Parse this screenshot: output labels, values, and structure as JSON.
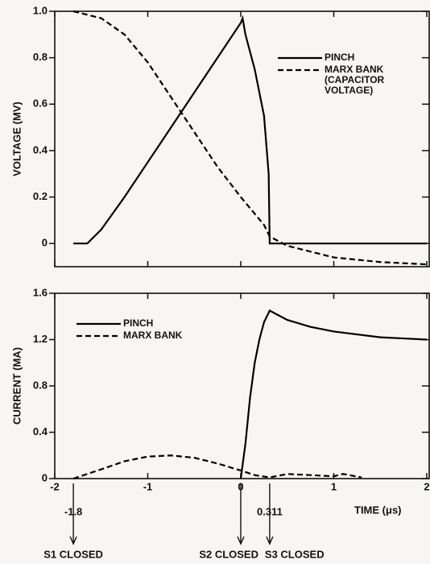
{
  "chart_data": [
    {
      "type": "line",
      "ylabel": "VOLTAGE (MV)",
      "xlim": [
        -2,
        2
      ],
      "ylim": [
        -0.1,
        1.0
      ],
      "xticks": [
        -2,
        -1,
        0,
        1,
        2
      ],
      "xtick_labels": false,
      "yticks": [
        0,
        0.2,
        0.4,
        0.6,
        0.8,
        {
          "value": 1,
          "label": "1.0"
        }
      ],
      "legend": "upper right",
      "series": [
        {
          "name": "PINCH",
          "color": "#000000",
          "linestyle": "solid",
          "x": [
            -1.8,
            -1.65,
            -1.5,
            -1.25,
            -1,
            -0.75,
            -0.5,
            -0.25,
            0,
            0.02,
            0.05,
            0.15,
            0.25,
            0.3,
            0.311,
            2
          ],
          "values": [
            0,
            0,
            0.06,
            0.2,
            0.35,
            0.5,
            0.65,
            0.8,
            0.95,
            0.97,
            0.9,
            0.75,
            0.55,
            0.3,
            0,
            0
          ]
        },
        {
          "name": "MARX BANK (CAPACITOR VOLTAGE)",
          "color": "#000000",
          "linestyle": "dashed",
          "x": [
            -1.8,
            -1.5,
            -1.25,
            -1,
            -0.75,
            -0.5,
            -0.25,
            0,
            0.25,
            0.311,
            0.5,
            1,
            1.5,
            2
          ],
          "values": [
            1.0,
            0.97,
            0.9,
            0.78,
            0.63,
            0.48,
            0.33,
            0.2,
            0.08,
            0.03,
            -0.01,
            -0.06,
            -0.08,
            -0.09
          ]
        }
      ]
    },
    {
      "type": "line",
      "ylabel": "CURRENT (MA)",
      "xlabel": "TIME (μs)",
      "xlim": [
        -2,
        2
      ],
      "ylim": [
        0,
        1.6
      ],
      "xticks": [
        -2,
        -1,
        0,
        1,
        2
      ],
      "xtick_labels": true,
      "yticks": [
        0,
        0.4,
        0.8,
        1.2,
        1.6
      ],
      "legend": "upper left",
      "series": [
        {
          "name": "PINCH",
          "color": "#000000",
          "linestyle": "solid",
          "x": [
            0,
            0.05,
            0.1,
            0.15,
            0.2,
            0.25,
            0.311,
            0.5,
            0.75,
            1,
            1.5,
            2
          ],
          "values": [
            0,
            0.3,
            0.7,
            1.0,
            1.2,
            1.35,
            1.45,
            1.37,
            1.31,
            1.27,
            1.22,
            1.2
          ]
        },
        {
          "name": "MARX BANK",
          "color": "#000000",
          "linestyle": "dashed",
          "x": [
            -1.8,
            -1.5,
            -1.25,
            -1,
            -0.75,
            -0.5,
            -0.25,
            0,
            0.15,
            0.311,
            0.5,
            0.75,
            1,
            1.1,
            1.3
          ],
          "values": [
            0,
            0.08,
            0.15,
            0.19,
            0.2,
            0.18,
            0.13,
            0.07,
            0.03,
            0.01,
            0.04,
            0.03,
            0.02,
            0.04,
            0.01
          ]
        }
      ],
      "annotations": [
        {
          "x": -1.8,
          "label": "-1.8",
          "text": "S1 CLOSED"
        },
        {
          "x": 0,
          "text": "S2 CLOSED"
        },
        {
          "x": 0.311,
          "label": "0.311",
          "text": "S3 CLOSED"
        }
      ]
    }
  ]
}
